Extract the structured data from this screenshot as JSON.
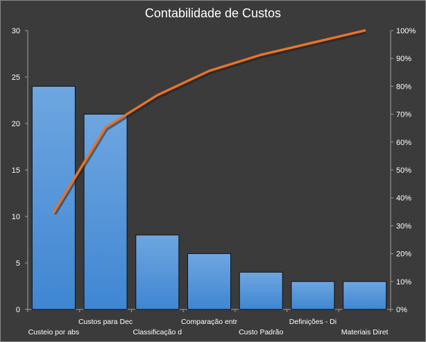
{
  "chart_data": {
    "type": "bar",
    "title": "Contabilidade  de  Custos",
    "categories": [
      "Custeio por abs",
      "Custos para Dec",
      "Classificação d",
      "Comparação entr",
      "Custo Padrão",
      "Definições - Di",
      "Materiais Diret"
    ],
    "series": [
      {
        "type": "bar",
        "values": [
          24,
          21,
          8,
          6,
          4,
          3,
          3
        ],
        "color": "#4a90d9"
      },
      {
        "type": "line",
        "axis": "right",
        "values": [
          0.3478,
          0.6522,
          0.7681,
          0.8551,
          0.913,
          0.9565,
          1.0
        ],
        "color": "#e8732a"
      }
    ],
    "y_left": {
      "min": 0,
      "max": 30,
      "ticks": [
        "0",
        "5",
        "10",
        "15",
        "20",
        "25",
        "30"
      ]
    },
    "y_right": {
      "min": 0,
      "max": 1,
      "ticks": [
        "0%",
        "10%",
        "20%",
        "30%",
        "40%",
        "50%",
        "60%",
        "70%",
        "80%",
        "90%",
        "100%"
      ]
    },
    "grid": false,
    "legend": "none"
  }
}
